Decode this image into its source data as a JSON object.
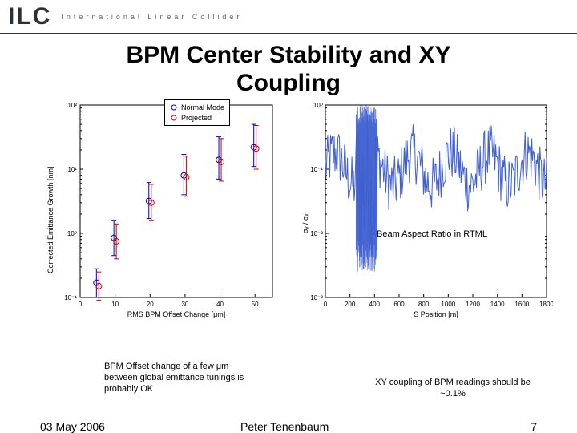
{
  "header": {
    "logo": "ILC",
    "subtitle": "International  Linear  Collider"
  },
  "title_line1": "BPM Center Stability and XY",
  "title_line2": "Coupling",
  "left_chart": {
    "type": "scatter",
    "xlabel": "RMS BPM Offset Change [μm]",
    "ylabel": "Corrected Emittance Growth [nm]",
    "xlim": [
      0,
      55
    ],
    "xticks": [
      0,
      10,
      20,
      30,
      40,
      50
    ],
    "ylim_exp": [
      -1,
      2
    ],
    "yticks_exp": [
      -1,
      0,
      1,
      2
    ],
    "ytick_labels": [
      "10⁻¹",
      "10⁰",
      "10¹",
      "10²"
    ],
    "legend": [
      {
        "label": "Normal Mode",
        "color": "#0000d0",
        "marker": "circle-open"
      },
      {
        "label": "Projected",
        "color": "#d00000",
        "marker": "circle-open"
      }
    ],
    "series": [
      {
        "name": "Normal Mode",
        "color": "#0000d0",
        "points": [
          {
            "x": 5,
            "y": 0.17,
            "errlo": 0.1,
            "errhi": 0.28
          },
          {
            "x": 10,
            "y": 0.85,
            "errlo": 0.45,
            "errhi": 1.6
          },
          {
            "x": 20,
            "y": 3.2,
            "errlo": 1.7,
            "errhi": 6.2
          },
          {
            "x": 30,
            "y": 8.0,
            "errlo": 4.0,
            "errhi": 17
          },
          {
            "x": 40,
            "y": 14,
            "errlo": 7,
            "errhi": 32
          },
          {
            "x": 50,
            "y": 22,
            "errlo": 11,
            "errhi": 50
          }
        ]
      },
      {
        "name": "Projected",
        "color": "#d00000",
        "points": [
          {
            "x": 5,
            "y": 0.15,
            "errlo": 0.09,
            "errhi": 0.25
          },
          {
            "x": 10,
            "y": 0.75,
            "errlo": 0.4,
            "errhi": 1.4
          },
          {
            "x": 20,
            "y": 3.0,
            "errlo": 1.6,
            "errhi": 5.8
          },
          {
            "x": 30,
            "y": 7.5,
            "errlo": 3.8,
            "errhi": 16
          },
          {
            "x": 40,
            "y": 13,
            "errlo": 6.5,
            "errhi": 30
          },
          {
            "x": 50,
            "y": 21,
            "errlo": 10,
            "errhi": 48
          }
        ]
      }
    ],
    "background_color": "#ffffff"
  },
  "right_chart": {
    "type": "line",
    "title_top": "10⁰",
    "xlabel": "S Position [m]",
    "ylabel": "σᵧ / σₓ",
    "xlim": [
      0,
      1800
    ],
    "xticks": [
      0,
      200,
      400,
      600,
      800,
      1000,
      1200,
      1400,
      1600,
      1800
    ],
    "ylim_exp": [
      -3,
      0
    ],
    "yticks_exp": [
      -3,
      -2,
      -1,
      0
    ],
    "ytick_labels": [
      "10⁻³",
      "10⁻²",
      "10⁻¹",
      "10⁰"
    ],
    "line_color": "#4060d0",
    "background_color": "#ffffff",
    "dense_region": {
      "x_start": 250,
      "x_end": 420,
      "y_min_exp": -2.6,
      "y_max_exp": 0
    },
    "baseline_exp": -1.0
  },
  "captions": {
    "left": "BPM Offset change of a few μm between global emittance tunings is probably OK",
    "right_top": "Beam Aspect Ratio in RTML",
    "right_bot_1": "XY coupling of BPM readings should be",
    "right_bot_2": "~0.1%"
  },
  "footer": {
    "date": "03 May 2006",
    "author": "Peter Tenenbaum",
    "page": "7"
  },
  "colors": {
    "text": "#000000",
    "axis": "#000000",
    "grid": "#cccccc"
  }
}
